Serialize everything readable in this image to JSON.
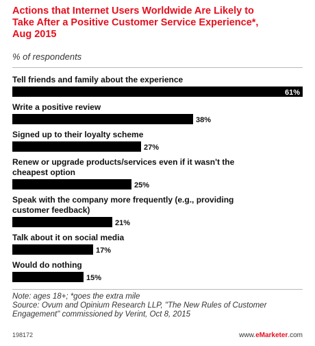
{
  "header": {
    "title_lines": [
      "Actions that Internet Users Worldwide Are Likely to",
      "Take After a Positive Customer Service Experience*,",
      "Aug 2015"
    ],
    "subtitle": "% of respondents"
  },
  "chart_data": {
    "type": "bar",
    "orientation": "horizontal",
    "categories": [
      [
        "Tell friends and family about the experience"
      ],
      [
        "Write a positive review"
      ],
      [
        "Signed up to their loyalty scheme"
      ],
      [
        "Renew or upgrade products/services even if it wasn't the",
        "cheapest option"
      ],
      [
        "Speak with the company more frequently (e.g., providing",
        "customer feedback)"
      ],
      [
        "Talk about it on social media"
      ],
      [
        "Would do nothing"
      ]
    ],
    "values": [
      61,
      38,
      27,
      25,
      21,
      17,
      15
    ],
    "value_labels": [
      "61%",
      "38%",
      "27%",
      "25%",
      "21%",
      "17%",
      "15%"
    ],
    "bar_color": "#000000",
    "xlim": [
      0,
      61
    ],
    "grid": false,
    "legend": "none"
  },
  "notes": {
    "note": "Note: ages 18+; *goes the extra mile",
    "source_line1": "Source: Ovum and Opinium Research LLP, \"The New Rules of Customer",
    "source_line2": "Engagement\" commissioned by Verint, Oct 8, 2015"
  },
  "footer": {
    "chart_id": "198172",
    "brand_prefix": "www.",
    "brand_name": "eMarketer",
    "brand_suffix": ".com"
  },
  "colors": {
    "title": "#e3101e",
    "rule": "#b8b8b8"
  }
}
